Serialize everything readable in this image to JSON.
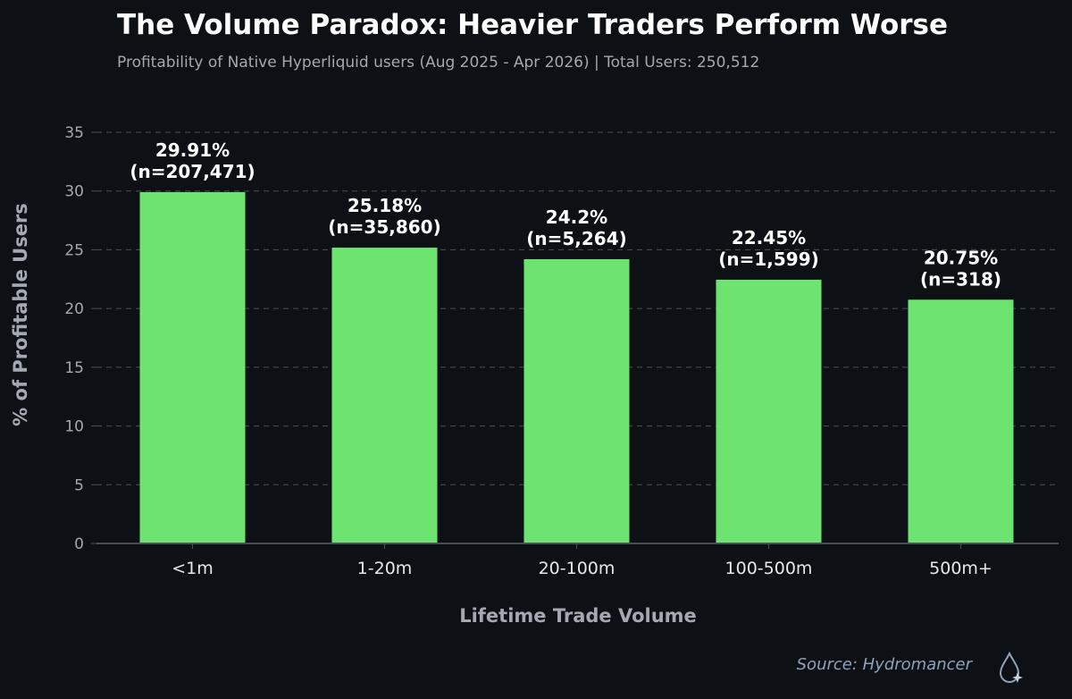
{
  "title": "The Volume Paradox: Heavier Traders Perform Worse",
  "subtitle": "Profitability of Native Hyperliquid users (Aug 2025 - Apr 2026) | Total Users: 250,512",
  "source": "Source: Hydromancer",
  "logo_icon": "water-drop-sparkle-icon",
  "colors": {
    "background": "#0d1014",
    "bar": "#6ce46f",
    "grid": "#4a4f57",
    "axis_text": "#a3a9b3",
    "label_text": "#ffffff"
  },
  "chart_data": {
    "type": "bar",
    "title": "The Volume Paradox: Heavier Traders Perform Worse",
    "xlabel": "Lifetime Trade Volume",
    "ylabel": "% of Profitable Users",
    "categories": [
      "<1m",
      "1-20m",
      "20-100m",
      "100-500m",
      "500m+"
    ],
    "values": [
      29.91,
      25.18,
      24.2,
      22.45,
      20.75
    ],
    "data_labels": [
      [
        "29.91%",
        "(n=207,471)"
      ],
      [
        "25.18%",
        "(n=35,860)"
      ],
      [
        "24.2%",
        "(n=5,264)"
      ],
      [
        "22.45%",
        "(n=1,599)"
      ],
      [
        "20.75%",
        "(n=318)"
      ]
    ],
    "yticks": [
      0,
      5,
      10,
      15,
      20,
      25,
      30,
      35
    ],
    "ylim": [
      0,
      36
    ],
    "grid": "horizontal dashed",
    "legend": "none"
  }
}
